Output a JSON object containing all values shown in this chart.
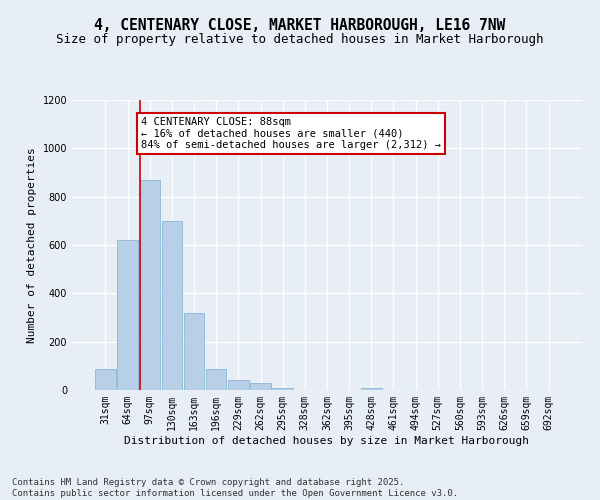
{
  "title": "4, CENTENARY CLOSE, MARKET HARBOROUGH, LE16 7NW",
  "subtitle": "Size of property relative to detached houses in Market Harborough",
  "xlabel": "Distribution of detached houses by size in Market Harborough",
  "ylabel": "Number of detached properties",
  "categories": [
    "31sqm",
    "64sqm",
    "97sqm",
    "130sqm",
    "163sqm",
    "196sqm",
    "229sqm",
    "262sqm",
    "295sqm",
    "328sqm",
    "362sqm",
    "395sqm",
    "428sqm",
    "461sqm",
    "494sqm",
    "527sqm",
    "560sqm",
    "593sqm",
    "626sqm",
    "659sqm",
    "692sqm"
  ],
  "values": [
    85,
    620,
    870,
    700,
    320,
    85,
    40,
    30,
    8,
    0,
    0,
    0,
    10,
    0,
    0,
    0,
    0,
    0,
    0,
    0,
    0
  ],
  "bar_color": "#b8cfe8",
  "bar_edge_color": "#7fafd4",
  "property_line_x": 1.55,
  "property_line_color": "#cc0000",
  "annotation_text": "4 CENTENARY CLOSE: 88sqm\n← 16% of detached houses are smaller (440)\n84% of semi-detached houses are larger (2,312) →",
  "annotation_box_color": "#ffffff",
  "annotation_box_edge_color": "#cc0000",
  "ylim": [
    0,
    1200
  ],
  "yticks": [
    0,
    200,
    400,
    600,
    800,
    1000,
    1200
  ],
  "footer_text": "Contains HM Land Registry data © Crown copyright and database right 2025.\nContains public sector information licensed under the Open Government Licence v3.0.",
  "background_color": "#e8eef6",
  "plot_background_color": "#e8eef6",
  "grid_color": "#ffffff",
  "title_fontsize": 10.5,
  "subtitle_fontsize": 9,
  "axis_label_fontsize": 8,
  "tick_fontsize": 7,
  "annotation_fontsize": 7.5,
  "footer_fontsize": 6.5
}
